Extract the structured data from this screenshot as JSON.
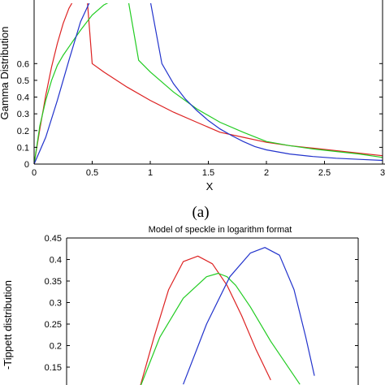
{
  "chart_data": [
    {
      "type": "line",
      "title": "",
      "caption": "(a)",
      "xlabel": "X",
      "ylabel": "Gamma Distribution",
      "xlim": [
        0,
        3
      ],
      "ylim": [
        0,
        0.97
      ],
      "x_ticks": [
        "0",
        "0.5",
        "1",
        "1.5",
        "2",
        "2.5",
        "3"
      ],
      "y_ticks": [
        "0",
        "0.1",
        "0.2",
        "0.3",
        "0.4",
        "0.5",
        "0.6"
      ],
      "grid": false,
      "series": [
        {
          "color": "#dd2222",
          "x": [
            0,
            0.05,
            0.1,
            0.15,
            0.2,
            0.25,
            0.3,
            0.35,
            0.4,
            0.45,
            0.5,
            0.6,
            0.8,
            1.0,
            1.2,
            1.4,
            1.6,
            1.8,
            2.0,
            2.2,
            2.4,
            2.6,
            2.8,
            3.0
          ],
          "y": [
            0,
            0.21,
            0.41,
            0.58,
            0.72,
            0.84,
            0.93,
            0.99,
            1.03,
            1.05,
            0.6,
            0.55,
            0.46,
            0.38,
            0.31,
            0.25,
            0.19,
            0.16,
            0.13,
            0.11,
            0.095,
            0.08,
            0.065,
            0.05
          ]
        },
        {
          "color": "#22cc22",
          "x": [
            0,
            0.05,
            0.1,
            0.15,
            0.2,
            0.25,
            0.3,
            0.35,
            0.4,
            0.5,
            0.6,
            0.8,
            0.9,
            1.0,
            1.2,
            1.4,
            1.6,
            1.8,
            2.0,
            2.2,
            2.4,
            2.6,
            2.8,
            3.0
          ],
          "y": [
            0,
            0.23,
            0.38,
            0.5,
            0.59,
            0.65,
            0.7,
            0.75,
            0.8,
            0.89,
            0.95,
            1.02,
            0.62,
            0.55,
            0.43,
            0.33,
            0.25,
            0.19,
            0.135,
            0.11,
            0.09,
            0.075,
            0.06,
            0.04
          ]
        },
        {
          "color": "#2233cc",
          "x": [
            0,
            0.1,
            0.2,
            0.3,
            0.4,
            0.5,
            0.7,
            0.9,
            1.1,
            1.2,
            1.3,
            1.4,
            1.5,
            1.6,
            1.7,
            1.8,
            1.9,
            2.0,
            2.2,
            2.4,
            2.6,
            2.8,
            3.0
          ],
          "y": [
            0,
            0.16,
            0.38,
            0.62,
            0.85,
            1.0,
            1.2,
            1.35,
            0.6,
            0.48,
            0.39,
            0.32,
            0.26,
            0.21,
            0.17,
            0.135,
            0.105,
            0.085,
            0.06,
            0.045,
            0.035,
            0.028,
            0.022
          ]
        }
      ]
    },
    {
      "type": "line",
      "title": "Model of speckle in logarithm format",
      "xlabel": "",
      "ylabel": "-Tippett distribution",
      "xlim": [
        0,
        1
      ],
      "ylim": [
        0.14,
        0.45
      ],
      "y_ticks": [
        "0.15",
        "0.2",
        "0.25",
        "0.3",
        "0.35",
        "0.4",
        "0.45"
      ],
      "grid": false,
      "series": [
        {
          "color": "#dd2222",
          "x": [
            0.25,
            0.3,
            0.35,
            0.4,
            0.45,
            0.5,
            0.55,
            0.6,
            0.65,
            0.7
          ],
          "y": [
            0.1,
            0.22,
            0.33,
            0.395,
            0.408,
            0.39,
            0.34,
            0.27,
            0.19,
            0.12
          ]
        },
        {
          "color": "#22cc22",
          "x": [
            0.25,
            0.32,
            0.4,
            0.48,
            0.52,
            0.55,
            0.58,
            0.63,
            0.7,
            0.8
          ],
          "y": [
            0.1,
            0.22,
            0.31,
            0.36,
            0.368,
            0.36,
            0.34,
            0.29,
            0.21,
            0.11
          ]
        },
        {
          "color": "#2233cc",
          "x": [
            0.4,
            0.48,
            0.56,
            0.63,
            0.68,
            0.73,
            0.78,
            0.82,
            0.85
          ],
          "y": [
            0.11,
            0.25,
            0.36,
            0.415,
            0.428,
            0.41,
            0.33,
            0.22,
            0.13
          ]
        }
      ]
    }
  ]
}
